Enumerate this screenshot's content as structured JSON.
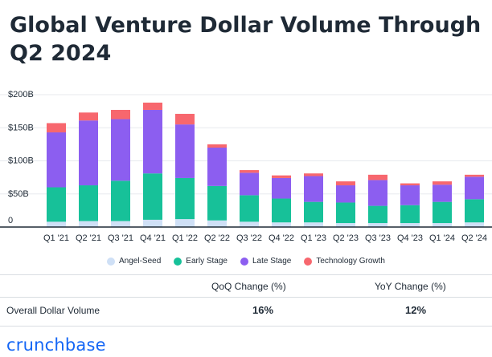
{
  "title": "Global Venture Dollar Volume Through Q2 2024",
  "colors": {
    "angel_seed": "#cfe0f6",
    "early_stage": "#17c199",
    "late_stage": "#8c5ef0",
    "technology_growth": "#f7676e",
    "axis": "#1f2a36",
    "brand": "#1466f5"
  },
  "chart_data": {
    "type": "bar",
    "stacked": true,
    "categories": [
      "Q1 '21",
      "Q2 '21",
      "Q3 '21",
      "Q4 '21",
      "Q1 '22",
      "Q2 '22",
      "Q3 '22",
      "Q4 '22",
      "Q1 '23",
      "Q2 '23",
      "Q3 '23",
      "Q4 '23",
      "Q1 '24",
      "Q2 '24"
    ],
    "series": [
      {
        "name": "Angel-Seed",
        "values": [
          8,
          9,
          9,
          11,
          12,
          10,
          8,
          7,
          7,
          6,
          6,
          6,
          6,
          7
        ]
      },
      {
        "name": "Early Stage",
        "values": [
          52,
          54,
          61,
          70,
          62,
          52,
          40,
          36,
          31,
          31,
          26,
          27,
          32,
          35
        ]
      },
      {
        "name": "Late Stage",
        "values": [
          83,
          98,
          93,
          96,
          81,
          58,
          34,
          31,
          39,
          26,
          39,
          30,
          26,
          34
        ]
      },
      {
        "name": "Technology Growth",
        "values": [
          14,
          12,
          14,
          11,
          16,
          5,
          4,
          4,
          4,
          6,
          8,
          3,
          5,
          3
        ]
      }
    ],
    "y_ticks": [
      0,
      50,
      100,
      150,
      200
    ],
    "y_tick_labels": [
      "0",
      "$50B",
      "$100B",
      "$150B",
      "$200B"
    ],
    "ylim": [
      0,
      200
    ],
    "grid": true,
    "legend_position": "bottom"
  },
  "legend": [
    "Angel-Seed",
    "Early Stage",
    "Late Stage",
    "Technology Growth"
  ],
  "table": {
    "headers": [
      "QoQ Change (%)",
      "YoY Change (%)"
    ],
    "rows": [
      {
        "label": "Overall Dollar Volume",
        "values": [
          "16%",
          "12%"
        ]
      }
    ]
  },
  "brand": "crunchbase"
}
